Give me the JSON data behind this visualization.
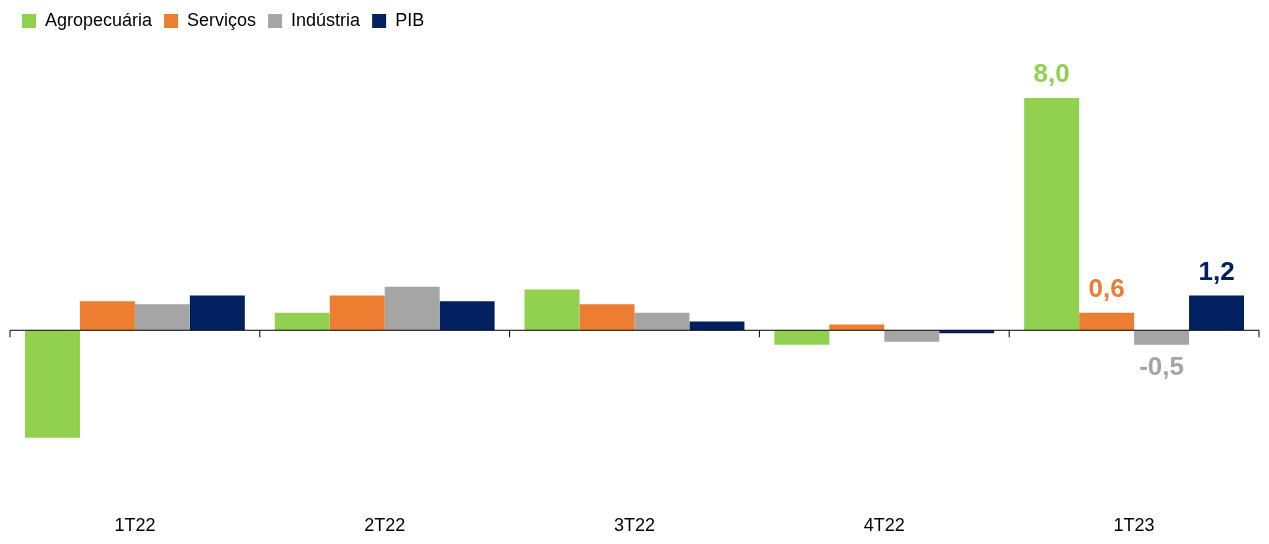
{
  "chart_data": {
    "type": "bar",
    "categories": [
      "1T22",
      "2T22",
      "3T22",
      "4T22",
      "1T23"
    ],
    "series": [
      {
        "name": "Agropecuária",
        "color": "#92d050",
        "values": [
          -3.7,
          0.6,
          1.4,
          -0.5,
          8.0
        ],
        "value_labels": [
          null,
          null,
          null,
          null,
          "8,0"
        ]
      },
      {
        "name": "Serviços",
        "color": "#ed7d31",
        "values": [
          1.0,
          1.2,
          0.9,
          0.2,
          0.6
        ],
        "value_labels": [
          null,
          null,
          null,
          null,
          "0,6"
        ]
      },
      {
        "name": "Indústria",
        "color": "#a5a5a5",
        "values": [
          0.9,
          1.5,
          0.6,
          -0.4,
          -0.5
        ],
        "value_labels": [
          null,
          null,
          null,
          null,
          "-0,5"
        ]
      },
      {
        "name": "PIB",
        "color": "#002060",
        "values": [
          1.2,
          1.0,
          0.3,
          -0.1,
          1.2
        ],
        "value_labels": [
          null,
          null,
          null,
          null,
          "1,2"
        ]
      }
    ],
    "legend": "top left"
  }
}
